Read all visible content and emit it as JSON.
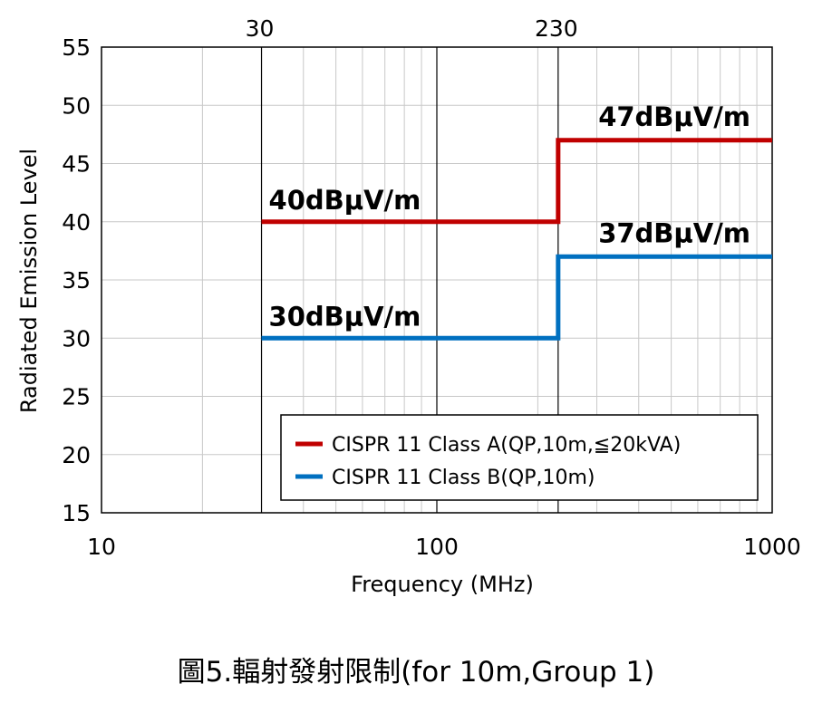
{
  "caption": "圖5.輻射發射限制(for 10m,Group 1)",
  "chart_data": {
    "type": "line",
    "xlabel": "Frequency (MHz)",
    "ylabel": "Radiated Emission Level",
    "x_scale": "log",
    "xlim": [
      10,
      1000
    ],
    "ylim": [
      15,
      55
    ],
    "x_tick_labels": [
      "10",
      "100",
      "1000"
    ],
    "x_major_ticks": [
      10,
      100,
      1000
    ],
    "y_ticks": [
      15,
      20,
      25,
      30,
      35,
      40,
      45,
      50,
      55
    ],
    "top_axis_labels": [
      "30",
      "230"
    ],
    "top_axis_ticks": [
      30,
      230
    ],
    "grid": true,
    "legend_position": "bottom-right",
    "series": [
      {
        "name": "CISPR 11 Class A(QP,10m,≦20kVA)",
        "color": "#c00000",
        "x": [
          30,
          230,
          230,
          1000
        ],
        "y": [
          40,
          40,
          47,
          47
        ],
        "label": "40dBμV/m",
        "label2": "47dBμV/m"
      },
      {
        "name": "CISPR 11 Class B(QP,10m)",
        "color": "#0070c0",
        "x": [
          30,
          230,
          230,
          1000
        ],
        "y": [
          30,
          30,
          37,
          37
        ],
        "label": "30dBμV/m",
        "label2": "37dBμV/m"
      }
    ]
  }
}
